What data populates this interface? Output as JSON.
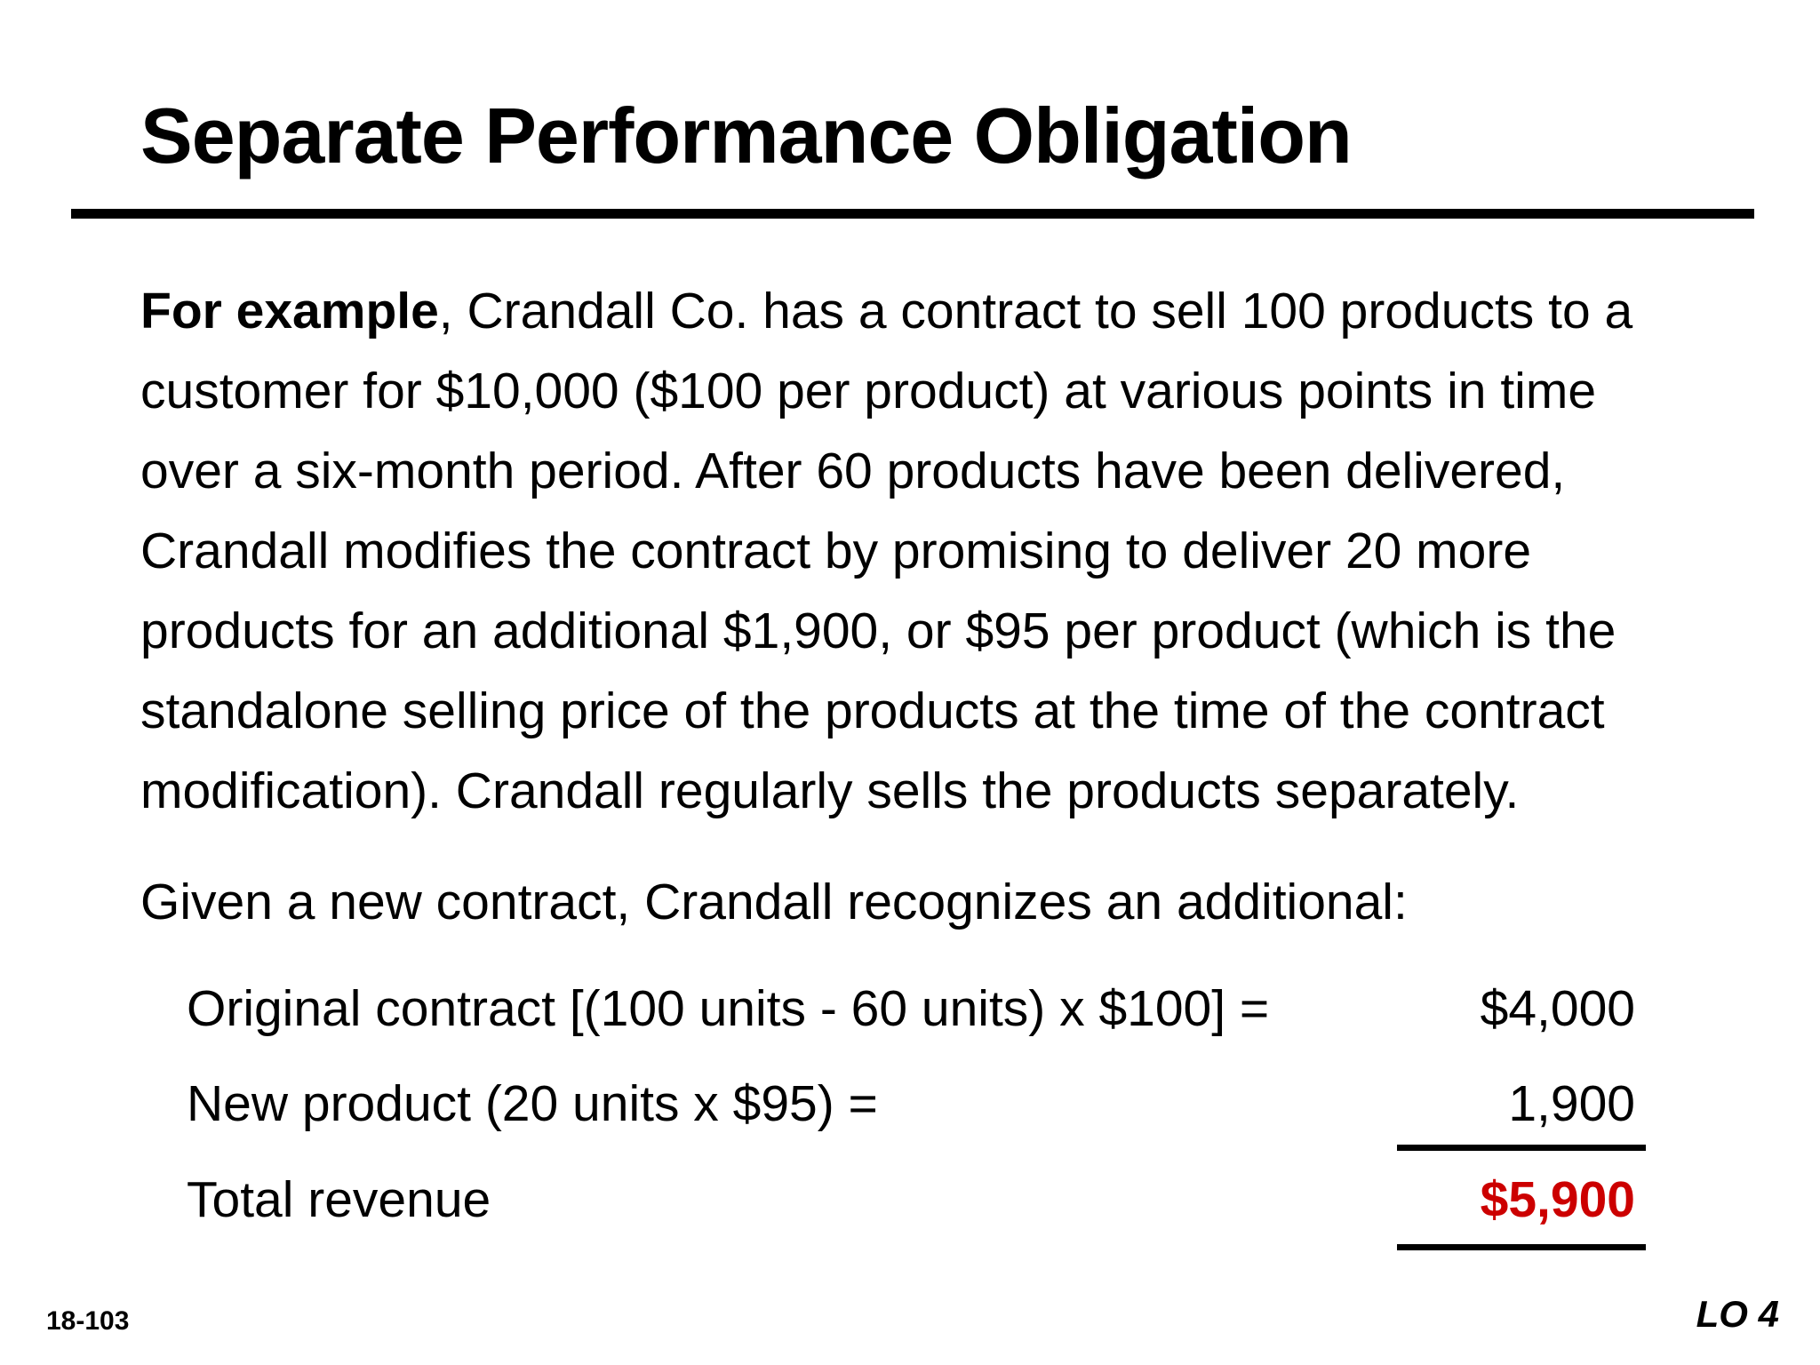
{
  "slide": {
    "title": "Separate Performance Obligation",
    "number": "18-103",
    "learning_objective": "LO 4"
  },
  "body": {
    "lead": "For example",
    "lines": [
      ", Crandall Co. has a contract to sell 100 products to a",
      "customer for $10,000 ($100 per product) at various points in time",
      "over a six-month period. After 60 products have been delivered,",
      "Crandall modifies the contract by promising to deliver 20 more",
      "products for an additional $1,900, or $95 per product (which is the",
      "standalone selling price of the products at the time of the contract",
      "modification). Crandall regularly sells the products separately."
    ],
    "given": "Given a new contract, Crandall recognizes an additional:"
  },
  "calculation": {
    "rows": [
      {
        "label": "Original contract [(100 units - 60 units) x $100] =",
        "amount": "$4,000"
      },
      {
        "label": "New product (20 units x $95) =",
        "amount": "1,900"
      },
      {
        "label": "Total revenue",
        "amount": "$5,900"
      }
    ]
  },
  "colors": {
    "total_highlight": "#cc0000",
    "text": "#000000",
    "background": "#ffffff"
  }
}
